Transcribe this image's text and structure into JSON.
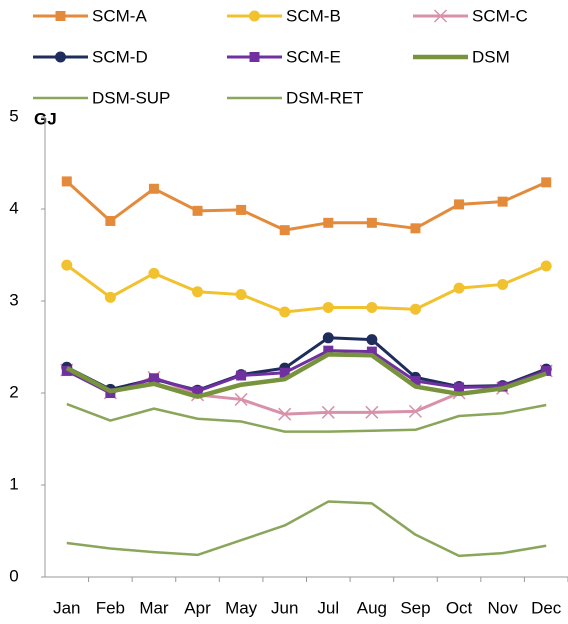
{
  "chart_data": {
    "type": "line",
    "y_label": "GJ",
    "categories": [
      "Jan",
      "Feb",
      "Mar",
      "Apr",
      "May",
      "Jun",
      "Jul",
      "Aug",
      "Sep",
      "Oct",
      "Nov",
      "Dec"
    ],
    "ylim": [
      0,
      5
    ],
    "yticks": [
      0,
      1,
      2,
      3,
      4,
      5
    ],
    "grid": false,
    "series": [
      {
        "name": "SCM-A",
        "color": "#e38b3b",
        "marker": "square",
        "width": 3,
        "values": [
          4.3,
          3.87,
          4.22,
          3.98,
          3.99,
          3.77,
          3.85,
          3.85,
          3.79,
          4.05,
          4.08,
          4.29
        ]
      },
      {
        "name": "SCM-B",
        "color": "#f2c12e",
        "marker": "circle",
        "width": 3,
        "values": [
          3.39,
          3.04,
          3.3,
          3.1,
          3.07,
          2.88,
          2.93,
          2.93,
          2.91,
          3.14,
          3.18,
          3.38
        ]
      },
      {
        "name": "SCM-C",
        "color": "#d891aa",
        "marker": "cross",
        "width": 3,
        "values": [
          2.25,
          2.0,
          2.17,
          1.98,
          1.93,
          1.77,
          1.79,
          1.79,
          1.8,
          2.0,
          2.05,
          2.24
        ]
      },
      {
        "name": "SCM-D",
        "color": "#1f2d5c",
        "marker": "circle",
        "width": 3,
        "values": [
          2.28,
          2.04,
          2.15,
          2.03,
          2.2,
          2.27,
          2.6,
          2.58,
          2.17,
          2.07,
          2.08,
          2.26
        ]
      },
      {
        "name": "SCM-E",
        "color": "#7030a0",
        "marker": "square",
        "width": 3,
        "values": [
          2.24,
          2.0,
          2.16,
          2.02,
          2.19,
          2.22,
          2.46,
          2.45,
          2.13,
          2.06,
          2.07,
          2.24
        ]
      },
      {
        "name": "DSM",
        "color": "#77933c",
        "marker": "none",
        "width": 4.5,
        "values": [
          2.27,
          2.02,
          2.1,
          1.96,
          2.09,
          2.15,
          2.42,
          2.41,
          2.07,
          1.99,
          2.05,
          2.21
        ]
      },
      {
        "name": "DSM-SUP",
        "color": "#8aa65a",
        "marker": "none",
        "width": 2.5,
        "values": [
          1.88,
          1.7,
          1.83,
          1.72,
          1.69,
          1.58,
          1.58,
          1.59,
          1.6,
          1.75,
          1.78,
          1.87
        ]
      },
      {
        "name": "DSM-RET",
        "color": "#8aa65a",
        "marker": "none",
        "width": 2.5,
        "values": [
          0.37,
          0.31,
          0.27,
          0.24,
          0.4,
          0.56,
          0.82,
          0.8,
          0.46,
          0.23,
          0.26,
          0.34
        ]
      }
    ]
  }
}
